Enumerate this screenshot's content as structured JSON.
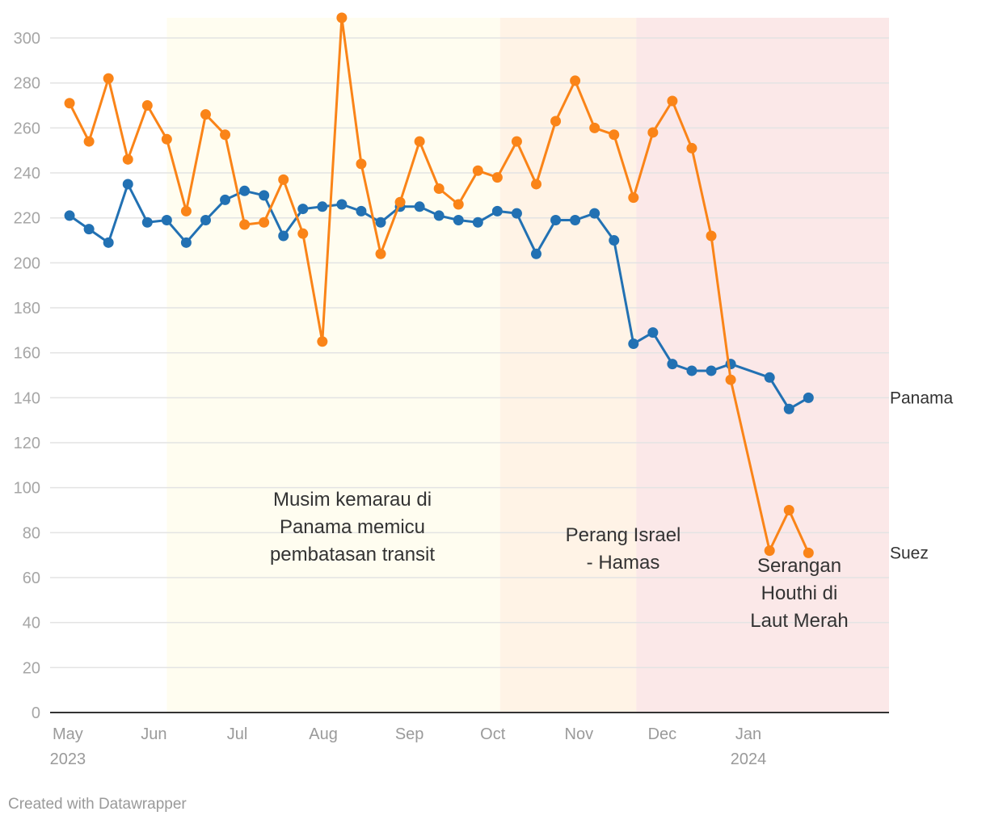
{
  "chart_data": {
    "type": "line",
    "ylim": [
      0,
      309
    ],
    "y_ticks": [
      "0",
      "20",
      "40",
      "60",
      "80",
      "100",
      "120",
      "140",
      "160",
      "180",
      "200",
      "220",
      "240",
      "260",
      "280",
      "300"
    ],
    "x_tick_labels": [
      {
        "label": "May",
        "sub": "2023",
        "date": "2023-05-01"
      },
      {
        "label": "Jun",
        "sub": "",
        "date": "2023-06-01"
      },
      {
        "label": "Jul",
        "sub": "",
        "date": "2023-07-01"
      },
      {
        "label": "Aug",
        "sub": "",
        "date": "2023-08-01"
      },
      {
        "label": "Sep",
        "sub": "",
        "date": "2023-09-01"
      },
      {
        "label": "Oct",
        "sub": "",
        "date": "2023-10-01"
      },
      {
        "label": "Nov",
        "sub": "",
        "date": "2023-11-01"
      },
      {
        "label": "Dec",
        "sub": "",
        "date": "2023-12-01"
      },
      {
        "label": "Jan",
        "sub": "2024",
        "date": "2024-01-01"
      }
    ],
    "x_range": [
      "2023-04-29",
      "2024-02-25"
    ],
    "shaded_periods": [
      {
        "start": "2023-06-10",
        "end": "2023-10-08",
        "color": "#fffdf0",
        "annotation": [
          "Musim kemarau di",
          "Panama memicu",
          "pembatasan transit"
        ]
      },
      {
        "start": "2023-10-08",
        "end": "2023-11-26",
        "color": "#fff3e6",
        "annotation": [
          "Perang Israel",
          "- Hamas"
        ]
      },
      {
        "start": "2023-11-26",
        "end": "2024-02-25",
        "color": "#fbe8e8",
        "annotation": [
          "Serangan",
          "Houthi di",
          "Laut Merah"
        ]
      }
    ],
    "series": [
      {
        "name": "Panama",
        "color": "#2271b3",
        "end_label": "Panama",
        "points": [
          [
            "2023-05-06",
            221
          ],
          [
            "2023-05-13",
            215
          ],
          [
            "2023-05-20",
            209
          ],
          [
            "2023-05-27",
            235
          ],
          [
            "2023-06-03",
            218
          ],
          [
            "2023-06-10",
            219
          ],
          [
            "2023-06-17",
            209
          ],
          [
            "2023-06-24",
            219
          ],
          [
            "2023-07-01",
            228
          ],
          [
            "2023-07-08",
            232
          ],
          [
            "2023-07-15",
            230
          ],
          [
            "2023-07-22",
            212
          ],
          [
            "2023-07-29",
            224
          ],
          [
            "2023-08-05",
            225
          ],
          [
            "2023-08-12",
            226
          ],
          [
            "2023-08-19",
            223
          ],
          [
            "2023-08-26",
            218
          ],
          [
            "2023-09-02",
            225
          ],
          [
            "2023-09-09",
            225
          ],
          [
            "2023-09-16",
            221
          ],
          [
            "2023-09-23",
            219
          ],
          [
            "2023-09-30",
            218
          ],
          [
            "2023-10-07",
            223
          ],
          [
            "2023-10-14",
            222
          ],
          [
            "2023-10-21",
            204
          ],
          [
            "2023-10-28",
            219
          ],
          [
            "2023-11-04",
            219
          ],
          [
            "2023-11-11",
            222
          ],
          [
            "2023-11-18",
            210
          ],
          [
            "2023-11-25",
            164
          ],
          [
            "2023-12-02",
            169
          ],
          [
            "2023-12-09",
            155
          ],
          [
            "2023-12-16",
            152
          ],
          [
            "2023-12-23",
            152
          ],
          [
            "2023-12-30",
            155
          ],
          [
            "2024-01-13",
            149
          ],
          [
            "2024-01-20",
            135
          ],
          [
            "2024-01-27",
            140
          ]
        ]
      },
      {
        "name": "Suez",
        "color": "#fa8418",
        "end_label": "Suez",
        "points": [
          [
            "2023-05-06",
            271
          ],
          [
            "2023-05-13",
            254
          ],
          [
            "2023-05-20",
            282
          ],
          [
            "2023-05-27",
            246
          ],
          [
            "2023-06-03",
            270
          ],
          [
            "2023-06-10",
            255
          ],
          [
            "2023-06-17",
            223
          ],
          [
            "2023-06-24",
            266
          ],
          [
            "2023-07-01",
            257
          ],
          [
            "2023-07-08",
            217
          ],
          [
            "2023-07-15",
            218
          ],
          [
            "2023-07-22",
            237
          ],
          [
            "2023-07-29",
            213
          ],
          [
            "2023-08-05",
            165
          ],
          [
            "2023-08-12",
            309
          ],
          [
            "2023-08-19",
            244
          ],
          [
            "2023-08-26",
            204
          ],
          [
            "2023-09-02",
            227
          ],
          [
            "2023-09-09",
            254
          ],
          [
            "2023-09-16",
            233
          ],
          [
            "2023-09-23",
            226
          ],
          [
            "2023-09-30",
            241
          ],
          [
            "2023-10-07",
            238
          ],
          [
            "2023-10-14",
            254
          ],
          [
            "2023-10-21",
            235
          ],
          [
            "2023-10-28",
            263
          ],
          [
            "2023-11-04",
            281
          ],
          [
            "2023-11-11",
            260
          ],
          [
            "2023-11-18",
            257
          ],
          [
            "2023-11-25",
            229
          ],
          [
            "2023-12-02",
            258
          ],
          [
            "2023-12-09",
            272
          ],
          [
            "2023-12-16",
            251
          ],
          [
            "2023-12-23",
            212
          ],
          [
            "2023-12-30",
            148
          ],
          [
            "2024-01-13",
            72
          ],
          [
            "2024-01-20",
            90
          ],
          [
            "2024-01-27",
            71
          ]
        ]
      }
    ]
  },
  "footer": {
    "credit": "Created with Datawrapper"
  }
}
